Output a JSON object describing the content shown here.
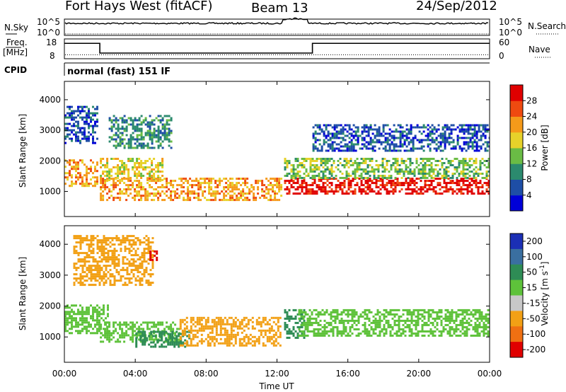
{
  "header": {
    "station": "Fort Hays West (fitACF)",
    "beam": "Beam 13",
    "date": "24/Sep/2012"
  },
  "noise_panel": {
    "left_label": "N.Sky",
    "right_label": "N.Search",
    "left_ticks": [
      "10^5",
      "10^0"
    ],
    "right_ticks": [
      "10^5",
      "10^0"
    ]
  },
  "freq_panel": {
    "left_label_top": "Freq.",
    "left_label_bottom": "[MHz]",
    "right_label": "Nave",
    "left_ticks": [
      "18",
      "8"
    ],
    "right_ticks": [
      "60",
      "0"
    ],
    "freq_series": [
      {
        "t_start": 0.0,
        "t_end": 2.0,
        "mhz": 16.3
      },
      {
        "t_start": 2.0,
        "t_end": 14.0,
        "mhz": 10.8
      },
      {
        "t_start": 14.0,
        "t_end": 24.0,
        "mhz": 16.3
      }
    ],
    "nave_value": 11
  },
  "cpid": {
    "label": "CPID",
    "text": "normal (fast) 151 IF"
  },
  "chart_data": [
    {
      "type": "heatmap",
      "name_panel": "power",
      "ylabel": "Slant Range [km]",
      "yticks": [
        "1000",
        "2000",
        "3000",
        "4000"
      ],
      "ylim": [
        180,
        4600
      ],
      "xlim": [
        0,
        24
      ],
      "colorbar_label": "Power [dB]",
      "colorbar_ticks": [
        "4",
        "8",
        "12",
        "16",
        "20",
        "24",
        "28"
      ],
      "colorbar_range": [
        0,
        32
      ],
      "colorscale": [
        "#0000d8",
        "#1e4ea6",
        "#2b8a6e",
        "#6abc45",
        "#e7d22a",
        "#f59a1a",
        "#ef4a10",
        "#e00000"
      ],
      "features": [
        {
          "t0": 0.0,
          "t1": 1.9,
          "r0": 1150,
          "r1": 2050,
          "level": 22
        },
        {
          "t0": 2.0,
          "t1": 5.5,
          "r0": 1400,
          "r1": 2100,
          "level": 16
        },
        {
          "t0": 2.0,
          "t1": 12.3,
          "r0": 700,
          "r1": 1450,
          "level": 22
        },
        {
          "t0": 12.4,
          "t1": 24.0,
          "r0": 950,
          "r1": 1450,
          "level": 28
        },
        {
          "t0": 12.4,
          "t1": 24.0,
          "r0": 1450,
          "r1": 2100,
          "level": 12
        },
        {
          "t0": 0.0,
          "t1": 1.8,
          "r0": 2600,
          "r1": 3800,
          "level": 6
        },
        {
          "t0": 2.5,
          "t1": 6.0,
          "r0": 2400,
          "r1": 3500,
          "level": 8
        },
        {
          "t0": 14.0,
          "t1": 24.0,
          "r0": 2300,
          "r1": 3200,
          "level": 6
        }
      ]
    },
    {
      "type": "heatmap",
      "name_panel": "velocity",
      "ylabel": "Slant Range [km]",
      "yticks": [
        "1000",
        "2000",
        "3000",
        "4000"
      ],
      "ylim": [
        180,
        4600
      ],
      "xlim": [
        0,
        24
      ],
      "colorbar_label": "Velocity [m s^-1]",
      "colorbar_ticks": [
        "200",
        "100",
        "50",
        "15",
        "-15",
        "-50",
        "-100",
        "-200"
      ],
      "colorscale": [
        "#1b2fb5",
        "#3a6fa0",
        "#2e8c55",
        "#5ec23a",
        "#c8c8c8",
        "#f2a015",
        "#ef7012",
        "#e00000"
      ],
      "features": [
        {
          "t0": 0.0,
          "t1": 2.5,
          "r0": 1100,
          "r1": 2050,
          "vel": "15"
        },
        {
          "t0": 2.0,
          "t1": 6.5,
          "r0": 850,
          "r1": 1500,
          "vel": "15"
        },
        {
          "t0": 4.0,
          "t1": 7.0,
          "r0": 700,
          "r1": 1200,
          "vel": "50"
        },
        {
          "t0": 6.5,
          "t1": 12.2,
          "r0": 750,
          "r1": 1650,
          "vel": "-50"
        },
        {
          "t0": 12.4,
          "t1": 13.5,
          "r0": 950,
          "r1": 1900,
          "vel": "50"
        },
        {
          "t0": 13.2,
          "t1": 24.0,
          "r0": 1050,
          "r1": 1900,
          "vel": "15"
        },
        {
          "t0": 0.5,
          "t1": 5.0,
          "r0": 2700,
          "r1": 4300,
          "vel": "-50"
        },
        {
          "t0": 4.8,
          "t1": 5.2,
          "r0": 3500,
          "r1": 3800,
          "vel": "-200"
        }
      ]
    }
  ],
  "xaxis": {
    "title": "Time UT",
    "ticks": [
      "00:00",
      "04:00",
      "08:00",
      "12:00",
      "16:00",
      "20:00",
      "00:00"
    ],
    "tick_hours": [
      0,
      4,
      8,
      12,
      16,
      20,
      24
    ]
  }
}
